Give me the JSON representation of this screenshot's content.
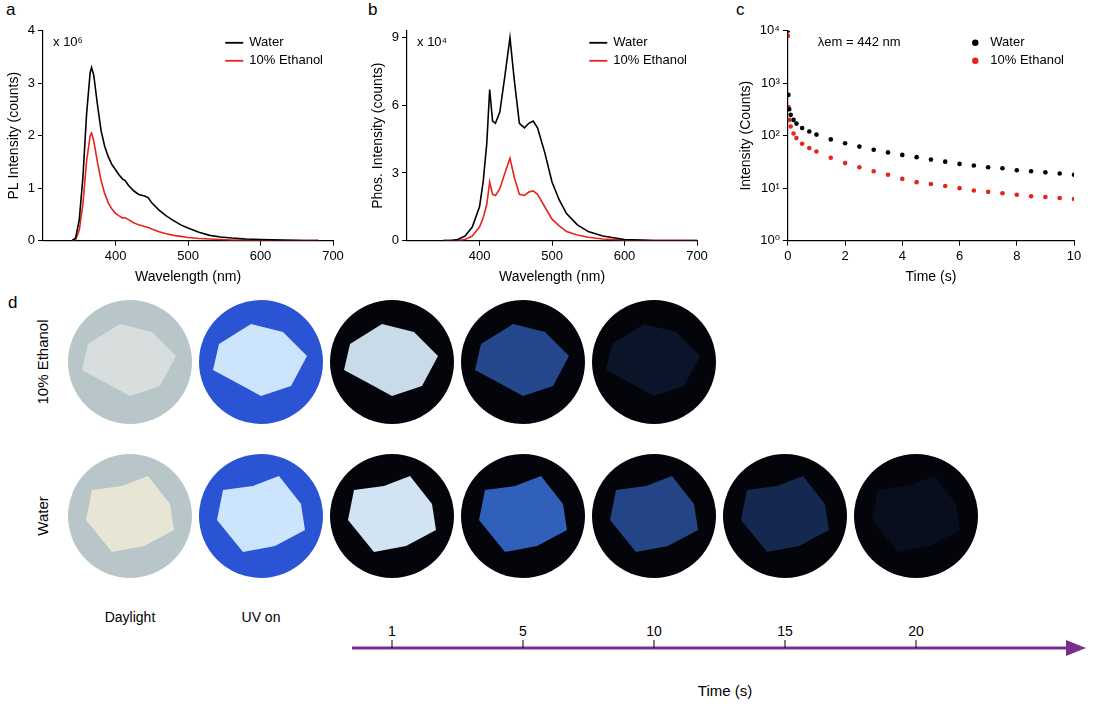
{
  "chart_data": [
    {
      "panel": "a",
      "type": "line",
      "annotations": [
        "x 10⁶"
      ],
      "xlabel": "Wavelength (nm)",
      "ylabel": "PL Intensity (counts)",
      "x": [
        340,
        345,
        350,
        355,
        360,
        365,
        367,
        370,
        375,
        380,
        385,
        390,
        395,
        400,
        405,
        410,
        413,
        418,
        425,
        432,
        440,
        445,
        450,
        460,
        470,
        480,
        490,
        500,
        515,
        530,
        545,
        560,
        580,
        600,
        630,
        660,
        680
      ],
      "series": [
        {
          "name": "Water",
          "color": "#000000",
          "values": [
            0,
            0.05,
            0.4,
            1.2,
            2.4,
            3.2,
            3.3,
            3.15,
            2.6,
            2.1,
            1.8,
            1.6,
            1.45,
            1.35,
            1.25,
            1.17,
            1.15,
            1.05,
            0.95,
            0.88,
            0.85,
            0.82,
            0.72,
            0.58,
            0.47,
            0.38,
            0.3,
            0.24,
            0.16,
            0.1,
            0.07,
            0.05,
            0.03,
            0.02,
            0.01,
            0,
            0
          ]
        },
        {
          "name": "10% Ethanol",
          "color": "#e8231c",
          "values": [
            0,
            0.02,
            0.2,
            0.7,
            1.5,
            2.0,
            2.05,
            1.9,
            1.5,
            1.15,
            0.9,
            0.72,
            0.6,
            0.52,
            0.47,
            0.43,
            0.44,
            0.4,
            0.34,
            0.3,
            0.27,
            0.25,
            0.22,
            0.17,
            0.13,
            0.1,
            0.08,
            0.06,
            0.04,
            0.03,
            0.02,
            0.01,
            0.01,
            0,
            0,
            0,
            0
          ]
        }
      ],
      "xlim": [
        300,
        700
      ],
      "xticks": [
        400,
        500,
        600,
        700
      ],
      "ylim": [
        0,
        4
      ],
      "yticks": [
        0,
        1,
        2,
        3,
        4
      ],
      "grid": false,
      "legend": "upper right"
    },
    {
      "panel": "b",
      "type": "line",
      "annotations": [
        "x 10⁴"
      ],
      "xlabel": "Wavelength (nm)",
      "ylabel": "Phos. Intensity (counts)",
      "x": [
        350,
        360,
        370,
        380,
        390,
        400,
        405,
        410,
        414,
        418,
        422,
        428,
        435,
        442,
        448,
        455,
        462,
        468,
        474,
        480,
        490,
        500,
        510,
        520,
        535,
        550,
        570,
        600,
        640,
        700
      ],
      "series": [
        {
          "name": "Water",
          "color": "#000000",
          "values": [
            0,
            0,
            0.05,
            0.2,
            0.6,
            1.5,
            2.6,
            4.3,
            6.7,
            5.3,
            5.2,
            5.7,
            7.3,
            9.0,
            7.1,
            5.2,
            5.0,
            5.2,
            5.3,
            5.0,
            3.9,
            2.6,
            1.8,
            1.2,
            0.7,
            0.4,
            0.2,
            0.05,
            0,
            0
          ]
        },
        {
          "name": "10% Ethanol",
          "color": "#e8231c",
          "values": [
            0,
            0,
            0,
            0.05,
            0.2,
            0.6,
            1.0,
            1.6,
            2.6,
            2.05,
            2.0,
            2.3,
            3.0,
            3.65,
            2.8,
            2.05,
            2.0,
            2.15,
            2.2,
            2.05,
            1.5,
            0.95,
            0.65,
            0.4,
            0.25,
            0.15,
            0.07,
            0.02,
            0,
            0
          ]
        }
      ],
      "xlim": [
        300,
        700
      ],
      "xticks": [
        400,
        500,
        600,
        700
      ],
      "ylim": [
        0,
        9.3
      ],
      "yticks": [
        0,
        3,
        6,
        9
      ],
      "grid": false,
      "legend": "upper right"
    },
    {
      "panel": "c",
      "type": "scatter",
      "annotations": [
        "λem = 442 nm"
      ],
      "xlabel": "Time (s)",
      "ylabel": "Intensity (Counts)",
      "log": "y",
      "marker": "circle",
      "x": [
        0,
        0.02,
        0.05,
        0.1,
        0.2,
        0.3,
        0.5,
        0.75,
        1,
        1.5,
        2,
        2.5,
        3,
        3.5,
        4,
        4.5,
        5,
        5.5,
        6,
        6.5,
        7,
        7.5,
        8,
        8.5,
        9,
        9.5,
        10
      ],
      "series": [
        {
          "name": "Water",
          "color": "#000000",
          "values": [
            10000,
            600,
            320,
            250,
            200,
            170,
            140,
            120,
            105,
            85,
            72,
            62,
            54,
            48,
            43,
            39,
            35,
            32,
            29,
            27,
            25,
            24,
            22,
            21,
            20,
            19,
            18
          ]
        },
        {
          "name": "10% Ethanol",
          "color": "#e8231c",
          "values": [
            8000,
            350,
            200,
            150,
            110,
            90,
            70,
            58,
            50,
            38,
            30,
            25,
            21,
            18,
            15,
            13,
            12,
            11,
            10,
            9,
            8.5,
            8,
            7.5,
            7,
            6.8,
            6.5,
            6.2
          ]
        }
      ],
      "xlim": [
        0,
        10
      ],
      "xticks": [
        0,
        2,
        4,
        6,
        8,
        10
      ],
      "ylim": [
        1,
        10000
      ],
      "yticks": [
        {
          "value": 1,
          "label": "10⁰"
        },
        {
          "value": 10,
          "label": "10¹"
        },
        {
          "value": 100,
          "label": "10²"
        },
        {
          "value": 1000,
          "label": "10³"
        },
        {
          "value": 10000,
          "label": "10⁴"
        }
      ],
      "grid": false,
      "legend": "upper right"
    }
  ],
  "photo_panel": {
    "panel": "d",
    "rows": [
      {
        "label": "10% Ethanol",
        "last_time": 10
      },
      {
        "label": "Water",
        "last_time": 20
      }
    ],
    "columns": [
      "Daylight",
      "UV on"
    ],
    "time_points": [
      1,
      5,
      10,
      15,
      20
    ],
    "time_label": "Time (s)"
  }
}
